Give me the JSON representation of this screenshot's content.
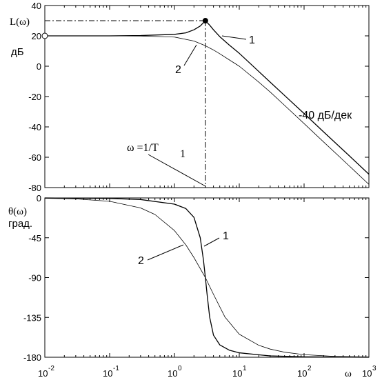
{
  "chart_data": [
    {
      "type": "line",
      "panel": "magnitude",
      "x_scale": "log",
      "xlim": [
        0.01,
        1000
      ],
      "ylim": [
        -80,
        40
      ],
      "yticks": [
        40,
        20,
        0,
        -20,
        -40,
        -60,
        -80
      ],
      "ylabel": "L(ω)",
      "yunit": "дБ",
      "series": [
        {
          "name": "1",
          "x": [
            0.01,
            0.1,
            0.3,
            1,
            1.5,
            2,
            2.5,
            3,
            3.5,
            4,
            5,
            7,
            10,
            15,
            20,
            30,
            50,
            100,
            200,
            500,
            1000
          ],
          "y": [
            20,
            20,
            20.2,
            21,
            22,
            24,
            26.5,
            30,
            27,
            24,
            19.5,
            14,
            8.5,
            1.5,
            -3.5,
            -10.5,
            -19.3,
            -31.2,
            -43.3,
            -59.1,
            -71.2
          ]
        },
        {
          "name": "2",
          "x": [
            0.01,
            0.1,
            0.3,
            1,
            2,
            3,
            4,
            5,
            7,
            10,
            20,
            30,
            50,
            100,
            200,
            500,
            1000
          ],
          "y": [
            20,
            20,
            19.9,
            19.2,
            16.6,
            13.5,
            10.7,
            8.2,
            4.2,
            0,
            -10.5,
            -17,
            -25.8,
            -37.8,
            -49.9,
            -65.8,
            -77.9
          ]
        }
      ],
      "annotations": {
        "label_1": "1",
        "label_2": "2",
        "slope": "-40 дБ/дек",
        "omega_eq": "ω =1/T",
        "omega_sub": "1",
        "peak_x": 3,
        "peak_y": 30,
        "origin_y": 20
      }
    },
    {
      "type": "line",
      "panel": "phase",
      "x_scale": "log",
      "xlim": [
        0.01,
        1000
      ],
      "ylim": [
        -180,
        0
      ],
      "yticks": [
        0,
        -45,
        -90,
        -135,
        -180
      ],
      "xticks_exp": [
        "-2",
        "-1",
        "0",
        "1",
        "2",
        "3"
      ],
      "xtick_base": "10",
      "xlabel": "ω",
      "ylabel": "θ(ω)",
      "yunit": "град.",
      "series": [
        {
          "name": "1",
          "x": [
            0.01,
            0.1,
            0.3,
            1,
            1.5,
            2,
            2.5,
            2.8,
            3,
            3.2,
            3.5,
            4,
            5,
            7,
            10,
            30,
            100,
            1000
          ],
          "y": [
            0,
            -0.6,
            -1.8,
            -7,
            -12,
            -22,
            -45,
            -70,
            -90,
            -110,
            -135,
            -155,
            -166,
            -172,
            -175,
            -178.5,
            -179.5,
            -180
          ]
        },
        {
          "name": "2",
          "x": [
            0.01,
            0.03,
            0.1,
            0.3,
            0.5,
            1,
            1.5,
            2,
            3,
            4,
            6,
            10,
            20,
            30,
            50,
            100,
            300,
            1000
          ],
          "y": [
            -0.4,
            -1.1,
            -3.8,
            -11.3,
            -18.7,
            -36.9,
            -53.1,
            -67.4,
            -90,
            -108.9,
            -134.5,
            -154,
            -166.5,
            -170.8,
            -174.3,
            -177.1,
            -179,
            -179.7
          ]
        }
      ],
      "annotations": {
        "label_1": "1",
        "label_2": "2"
      }
    }
  ]
}
